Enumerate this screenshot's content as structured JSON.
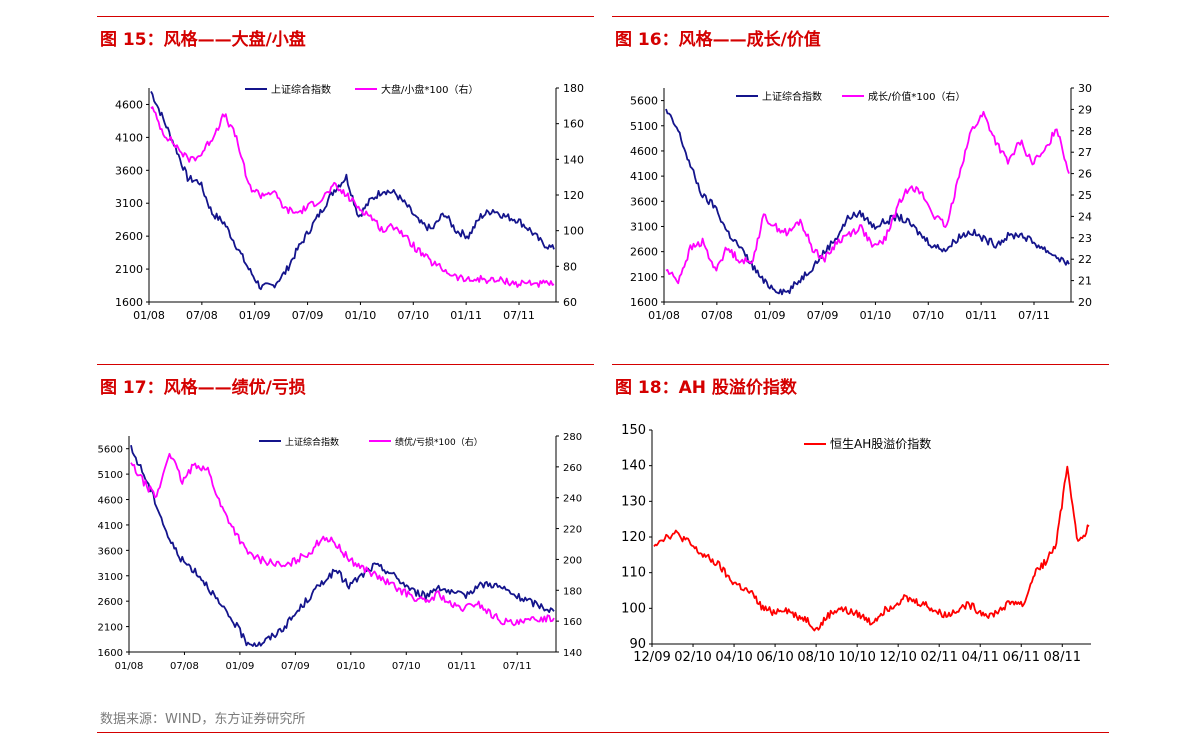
{
  "source": "数据来源：WIND，东方证券研究所",
  "colors": {
    "accent": "#d40000",
    "navy": "#14148c",
    "magenta": "#ff00ff",
    "red": "#ff0000"
  },
  "chart_data": [
    {
      "title": "图 15：风格——大盘/小盘",
      "type": "line",
      "x_labels": [
        "01/08",
        "07/08",
        "01/09",
        "07/09",
        "01/10",
        "07/10",
        "01/11",
        "07/11"
      ],
      "yleft_range": [
        1600,
        4850
      ],
      "yleft_ticks": [
        "4600",
        "4100",
        "3600",
        "3100",
        "2600",
        "2100",
        "1600"
      ],
      "yright_range": [
        60,
        180
      ],
      "yright_ticks": [
        "180",
        "160",
        "140",
        "120",
        "100",
        "80",
        "60"
      ],
      "series": [
        {
          "name": "上证综合指数",
          "axis": "left",
          "color": "#14148c",
          "values": [
            4800,
            4380,
            3950,
            3480,
            3420,
            2950,
            2800,
            2450,
            2100,
            1820,
            1850,
            2050,
            2400,
            2700,
            3000,
            3300,
            3500,
            2900,
            3150,
            3300,
            3250,
            3050,
            2800,
            2700,
            2950,
            2680,
            2600,
            2900,
            3000,
            2900,
            2850,
            2700,
            2500,
            2400
          ]
        },
        {
          "name": "大盘/小盘*100（右）",
          "axis": "right",
          "color": "#ff00ff",
          "values": [
            170,
            155,
            148,
            140,
            142,
            152,
            165,
            152,
            125,
            120,
            122,
            112,
            110,
            114,
            118,
            125,
            120,
            113,
            108,
            100,
            103,
            95,
            88,
            82,
            78,
            74,
            72,
            73,
            72,
            72,
            70,
            71,
            70,
            70
          ]
        }
      ]
    },
    {
      "title": "图 16：风格——成长/价值",
      "type": "line",
      "x_labels": [
        "01/08",
        "07/08",
        "01/09",
        "07/09",
        "01/10",
        "07/10",
        "01/11",
        "07/11"
      ],
      "yleft_range": [
        1600,
        5850
      ],
      "yleft_ticks": [
        "5600",
        "5100",
        "4600",
        "4100",
        "3600",
        "3100",
        "2600",
        "2100",
        "1600"
      ],
      "yright_range": [
        20,
        30
      ],
      "yright_ticks": [
        "30",
        "29",
        "28",
        "27",
        "26",
        "25",
        "24",
        "23",
        "22",
        "21",
        "20"
      ],
      "series": [
        {
          "name": "上证综合指数",
          "axis": "left",
          "color": "#14148c",
          "values": [
            5400,
            5000,
            4300,
            3700,
            3500,
            3000,
            2700,
            2350,
            2000,
            1850,
            1800,
            2050,
            2300,
            2600,
            2900,
            3300,
            3350,
            3100,
            3200,
            3300,
            3150,
            2900,
            2700,
            2650,
            2900,
            3000,
            2850,
            2750,
            2900,
            2950,
            2800,
            2650,
            2500,
            2350
          ]
        },
        {
          "name": "成长/价值*100（右）",
          "axis": "right",
          "color": "#ff00ff",
          "values": [
            21.5,
            21.0,
            22.5,
            22.8,
            21.5,
            22.5,
            22.0,
            21.8,
            24.0,
            23.5,
            23.2,
            23.8,
            22.5,
            22.0,
            22.8,
            23.2,
            23.5,
            22.5,
            23.0,
            24.5,
            25.5,
            25.0,
            24.0,
            23.5,
            26.0,
            28.0,
            28.8,
            27.5,
            26.5,
            27.5,
            26.5,
            27.0,
            28.2,
            26.0
          ]
        }
      ]
    },
    {
      "title": "图 17：风格——绩优/亏损",
      "type": "line",
      "x_labels": [
        "01/08",
        "07/08",
        "01/09",
        "07/09",
        "01/10",
        "07/10",
        "01/11",
        "07/11"
      ],
      "yleft_range": [
        1600,
        5850
      ],
      "yleft_ticks": [
        "5600",
        "5100",
        "4600",
        "4100",
        "3600",
        "3100",
        "2600",
        "2100",
        "1600"
      ],
      "yright_range": [
        140,
        280
      ],
      "yright_ticks": [
        "280",
        "260",
        "240",
        "220",
        "200",
        "180",
        "160",
        "140"
      ],
      "series": [
        {
          "name": "上证综合指数",
          "axis": "left",
          "color": "#14148c",
          "values": [
            5600,
            5100,
            4500,
            3800,
            3400,
            3200,
            2900,
            2500,
            2200,
            1800,
            1750,
            1900,
            2100,
            2400,
            2700,
            3000,
            3200,
            2900,
            3100,
            3300,
            3200,
            3000,
            2800,
            2700,
            2900,
            2750,
            2700,
            2900,
            2950,
            2850,
            2700,
            2600,
            2500,
            2400
          ]
        },
        {
          "name": "绩优/亏损*100（右）",
          "axis": "right",
          "color": "#ff00ff",
          "values": [
            262,
            250,
            240,
            270,
            250,
            262,
            258,
            235,
            220,
            205,
            200,
            198,
            195,
            200,
            205,
            215,
            210,
            200,
            195,
            190,
            185,
            180,
            176,
            172,
            178,
            170,
            168,
            172,
            165,
            160,
            158,
            160,
            162,
            162
          ]
        }
      ]
    },
    {
      "title": "图 18：AH 股溢价指数",
      "type": "line",
      "x_labels": [
        "12/09",
        "02/10",
        "04/10",
        "06/10",
        "08/10",
        "10/10",
        "12/10",
        "02/11",
        "04/11",
        "06/11",
        "08/11"
      ],
      "yleft_range": [
        90,
        150
      ],
      "yleft_ticks": [
        "150",
        "140",
        "130",
        "120",
        "110",
        "100",
        "90"
      ],
      "series": [
        {
          "name": "恒生AH股溢价指数",
          "axis": "left",
          "color": "#ff0000",
          "values": [
            118,
            120,
            121,
            119,
            116,
            114,
            112,
            108,
            106,
            104,
            100,
            99,
            100,
            98,
            97,
            94,
            98,
            100,
            99,
            98,
            96,
            99,
            101,
            103,
            102,
            101,
            99,
            98,
            100,
            101,
            99,
            98,
            100,
            102,
            101,
            110,
            113,
            118,
            140,
            118,
            123
          ]
        }
      ]
    }
  ],
  "panels": [
    {
      "legend": [
        "上证综合指数",
        "大盘/小盘*100（右）"
      ]
    },
    {
      "legend": [
        "上证综合指数",
        "成长/价值*100（右）"
      ]
    },
    {
      "legend": [
        "上证综合指数",
        "绩优/亏损*100（右）"
      ]
    },
    {
      "legend": [
        "恒生AH股溢价指数"
      ]
    }
  ]
}
